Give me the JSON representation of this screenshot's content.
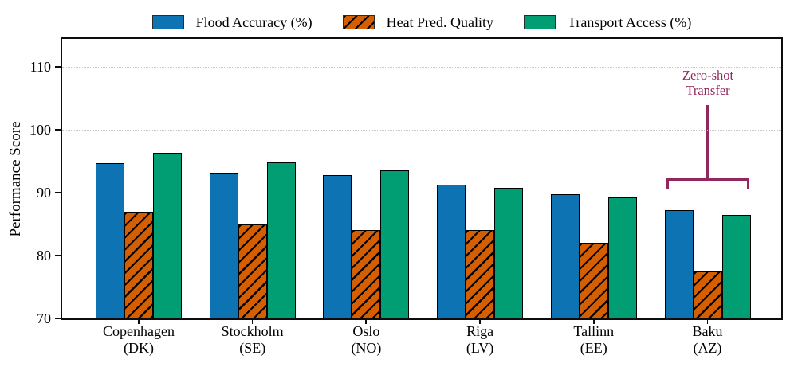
{
  "figure": {
    "background": "#ffffff"
  },
  "legend": {
    "items": [
      {
        "label": "Flood Accuracy (%)",
        "color": "#0d73b2",
        "hatch": "none"
      },
      {
        "label": "Heat Pred. Quality",
        "color": "#d55e00",
        "hatch": "/"
      },
      {
        "label": "Transport Access (%)",
        "color": "#029e73",
        "hatch": "none"
      }
    ]
  },
  "annotation": {
    "line1": "Zero-shot",
    "line2": "Transfer",
    "color": "#93265d",
    "target": "Baku (AZ)"
  },
  "chart_data": {
    "type": "bar",
    "title": "",
    "xlabel": "",
    "ylabel": "Performance Score",
    "ylim": [
      70,
      114.4
    ],
    "yticks": [
      70,
      80,
      90,
      100,
      110
    ],
    "grid": "horizontal dotted",
    "legend_position": "top center",
    "bar_edge_color": "#000000",
    "categories": [
      "Copenhagen (DK)",
      "Stockholm (SE)",
      "Oslo (NO)",
      "Riga (LV)",
      "Tallinn (EE)",
      "Baku (AZ)"
    ],
    "category_lines": [
      [
        "Copenhagen",
        "(DK)"
      ],
      [
        "Stockholm",
        "(SE)"
      ],
      [
        "Oslo",
        "(NO)"
      ],
      [
        "Riga",
        "(LV)"
      ],
      [
        "Tallinn",
        "(EE)"
      ],
      [
        "Baku",
        "(AZ)"
      ]
    ],
    "series": [
      {
        "name": "Flood Accuracy (%)",
        "color": "#0d73b2",
        "hatch": "none",
        "values": [
          94.7,
          93.2,
          92.8,
          91.3,
          89.8,
          87.2
        ]
      },
      {
        "name": "Heat Pred. Quality",
        "color": "#d55e00",
        "hatch": "/",
        "values": [
          87.0,
          85.0,
          84.0,
          84.0,
          82.0,
          77.5
        ]
      },
      {
        "name": "Transport Access (%)",
        "color": "#029e73",
        "hatch": "none",
        "values": [
          96.3,
          94.8,
          93.5,
          90.7,
          89.2,
          86.4
        ]
      }
    ],
    "annotation": {
      "text": "Zero-shot Transfer",
      "target": "Baku (AZ)",
      "color": "#93265d"
    }
  }
}
